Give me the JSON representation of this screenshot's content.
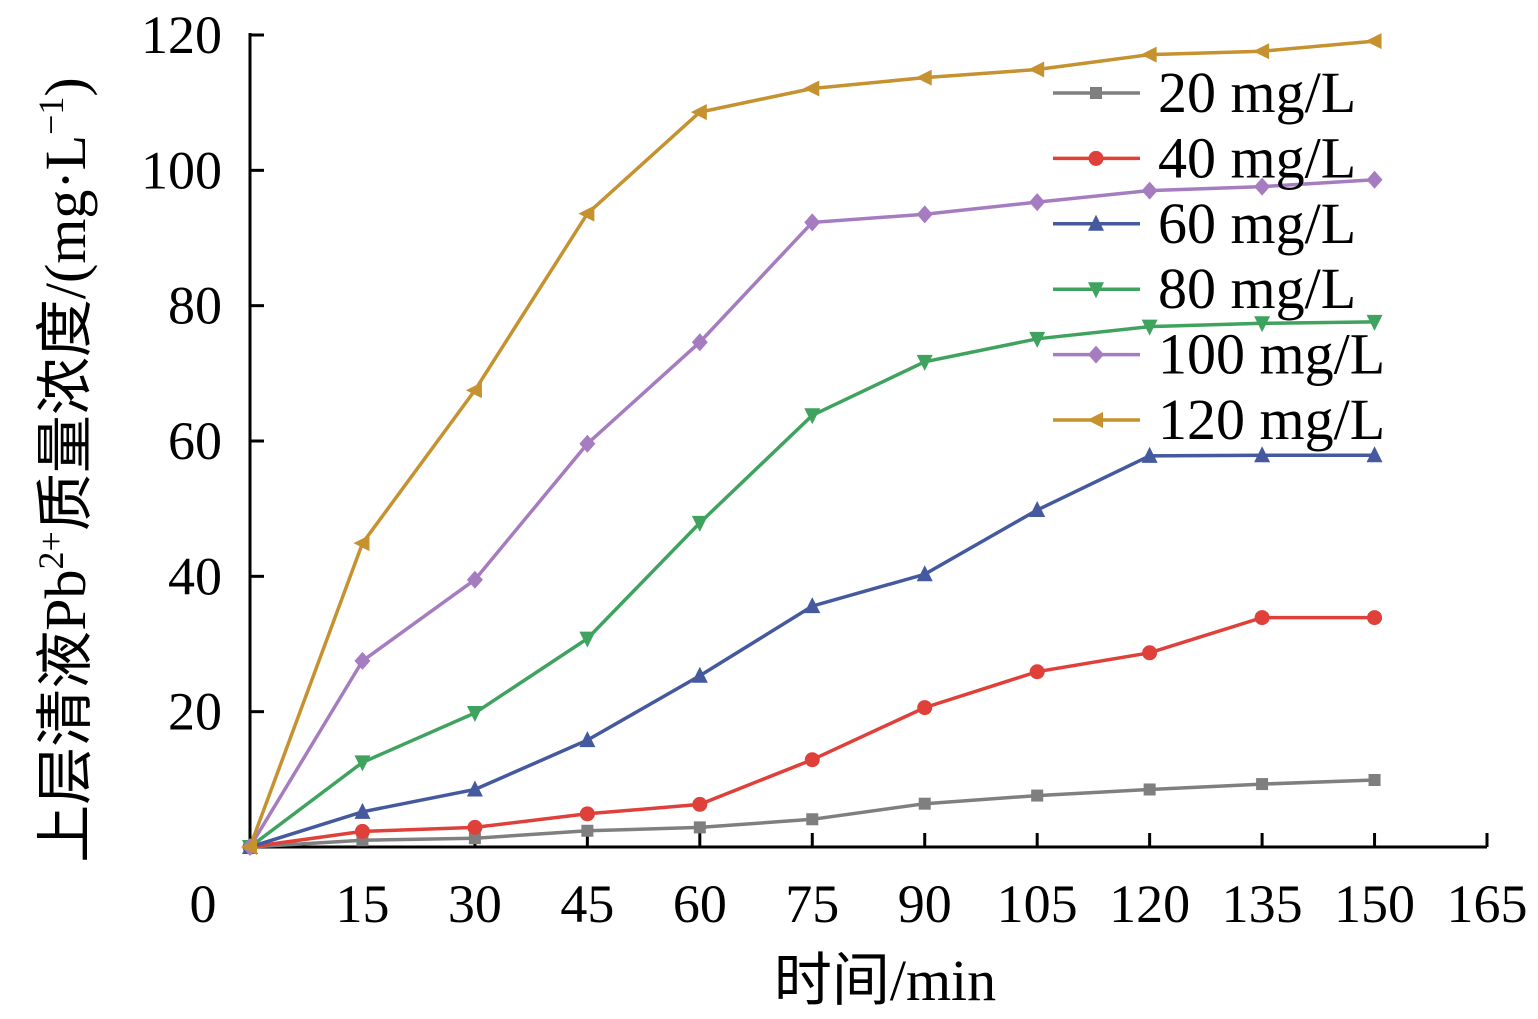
{
  "chart_data": {
    "type": "line",
    "xlabel": "时间/min",
    "ylabel": "上层清液Pb²⁺质量浓度/(mg·L⁻¹)",
    "ylabel_parts": {
      "main": "上层清液Pb",
      "sup": "2+",
      "mid": "质量浓度/(mg·L",
      "sup2": "−1",
      "end": ")"
    },
    "xlim": [
      0,
      165
    ],
    "ylim": [
      0,
      120
    ],
    "x_ticks": [
      0,
      15,
      30,
      45,
      60,
      75,
      90,
      105,
      120,
      135,
      150,
      165
    ],
    "y_ticks": [
      20,
      40,
      60,
      80,
      100,
      120
    ],
    "grid": false,
    "legend_position": "top-right",
    "x": [
      0,
      15,
      30,
      45,
      60,
      75,
      90,
      105,
      120,
      135,
      150
    ],
    "series": [
      {
        "name": "20 mg/L",
        "color": "#7f7f7f",
        "marker": "square",
        "values": [
          0,
          1,
          1.3,
          2.4,
          2.9,
          4.1,
          6.4,
          7.6,
          8.5,
          9.3,
          9.9
        ]
      },
      {
        "name": "40 mg/L",
        "color": "#e0403a",
        "marker": "circle",
        "values": [
          0,
          2.3,
          2.9,
          4.9,
          6.3,
          12.9,
          20.6,
          25.9,
          28.7,
          33.9,
          33.9
        ]
      },
      {
        "name": "60 mg/L",
        "color": "#44599e",
        "marker": "triangle-up",
        "values": [
          0,
          5.2,
          8.5,
          15.8,
          25.3,
          35.6,
          40.3,
          49.8,
          57.8,
          57.9,
          57.9
        ]
      },
      {
        "name": "80 mg/L",
        "color": "#3fa35f",
        "marker": "triangle-down",
        "values": [
          0,
          12.5,
          19.8,
          30.8,
          47.9,
          63.8,
          71.7,
          75.1,
          76.9,
          77.4,
          77.6
        ]
      },
      {
        "name": "100 mg/L",
        "color": "#a67cc0",
        "marker": "diamond",
        "values": [
          0,
          27.5,
          39.5,
          59.6,
          74.6,
          92.3,
          93.5,
          95.3,
          97,
          97.6,
          98.6
        ]
      },
      {
        "name": "120 mg/L",
        "color": "#c6912f",
        "marker": "triangle-left",
        "values": [
          0,
          44.9,
          67.5,
          93.6,
          108.6,
          112.1,
          113.7,
          114.9,
          117.1,
          117.6,
          119.1
        ]
      }
    ]
  }
}
